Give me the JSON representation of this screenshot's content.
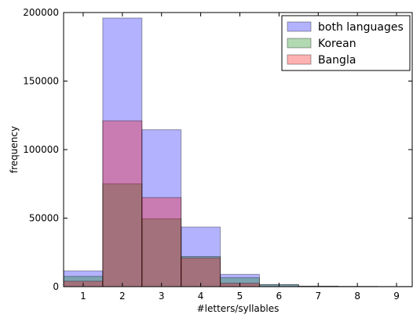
{
  "chart_data": {
    "type": "bar",
    "title": "",
    "xlabel": "#letters/syllables",
    "ylabel": "frequency",
    "categories": [
      "1",
      "2",
      "3",
      "4",
      "5",
      "6",
      "7",
      "8",
      "9"
    ],
    "x": [
      1,
      2,
      3,
      4,
      5,
      6,
      7,
      8,
      9
    ],
    "xlim": [
      0.5,
      9.4
    ],
    "ylim": [
      0,
      200000
    ],
    "y_ticks": [
      "0",
      "50000",
      "100000",
      "150000",
      "200000"
    ],
    "y_tick_values": [
      0,
      50000,
      100000,
      150000,
      200000
    ],
    "grid": false,
    "legend_position": "top-right",
    "overlay": true,
    "series": [
      {
        "name": "both languages",
        "color": "#0000ff",
        "values": [
          11500,
          196000,
          114500,
          43500,
          9000,
          1500,
          400,
          200,
          100
        ]
      },
      {
        "name": "Korean",
        "color": "#008000",
        "values": [
          7500,
          75000,
          49500,
          22000,
          6500,
          1500,
          300,
          150,
          80
        ]
      },
      {
        "name": "Bangla",
        "color": "#ff0000",
        "values": [
          4000,
          121000,
          65000,
          21000,
          2500,
          100,
          50,
          20,
          10
        ]
      }
    ]
  }
}
